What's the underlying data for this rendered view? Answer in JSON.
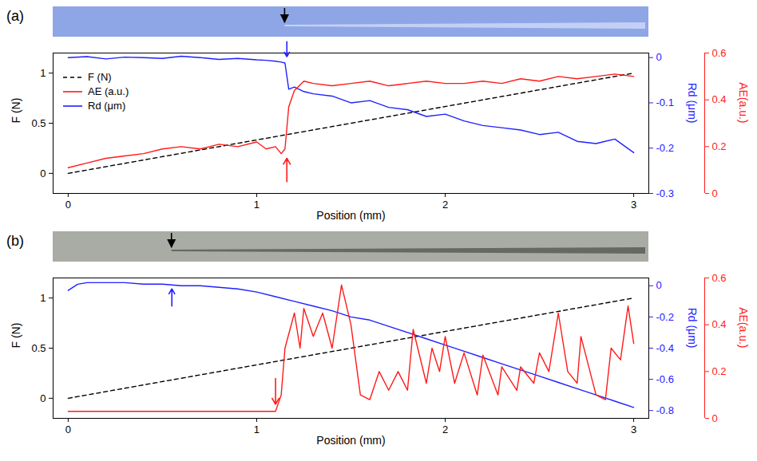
{
  "chart_data": [
    {
      "type": "line",
      "title": "(a)",
      "x_label": "Position (mm)",
      "y_label": "F (N)",
      "y2_label": "Rd (μm)",
      "y3_label": "AE(a.u.)",
      "xlim": [
        -0.08,
        3.08
      ],
      "xticks": [
        0,
        1,
        2,
        3
      ],
      "ylim": [
        -0.2,
        1.2
      ],
      "yticks": [
        0,
        0.5,
        1
      ],
      "y2lim": [
        -0.3,
        0.01
      ],
      "y2ticks": [
        0,
        -0.1,
        -0.2,
        -0.3
      ],
      "y3lim": [
        0,
        0.6
      ],
      "y3ticks": [
        0,
        0.2,
        0.4,
        0.6
      ],
      "legend": "upper left",
      "series": [
        {
          "name": "F (N)",
          "color": "#000000",
          "line_style": "dashed",
          "axis": "y",
          "x": [
            0,
            3
          ],
          "values": [
            0,
            1
          ]
        },
        {
          "name": "AE (a.u.)",
          "color": "#ff1a1a",
          "line_style": "solid",
          "axis": "y3",
          "x": [
            0,
            0.1,
            0.2,
            0.3,
            0.4,
            0.5,
            0.6,
            0.7,
            0.8,
            0.9,
            1.0,
            1.05,
            1.1,
            1.13,
            1.15,
            1.17,
            1.2,
            1.25,
            1.3,
            1.4,
            1.5,
            1.6,
            1.7,
            1.8,
            1.9,
            2.0,
            2.1,
            2.2,
            2.3,
            2.4,
            2.5,
            2.6,
            2.7,
            2.8,
            2.9,
            3.0
          ],
          "values": [
            0.11,
            0.13,
            0.15,
            0.16,
            0.17,
            0.19,
            0.2,
            0.19,
            0.21,
            0.2,
            0.22,
            0.19,
            0.2,
            0.17,
            0.19,
            0.37,
            0.44,
            0.48,
            0.47,
            0.46,
            0.47,
            0.48,
            0.46,
            0.47,
            0.48,
            0.47,
            0.47,
            0.48,
            0.47,
            0.49,
            0.48,
            0.5,
            0.49,
            0.5,
            0.51,
            0.5
          ]
        },
        {
          "name": "Rd (μm)",
          "color": "#2020ff",
          "line_style": "solid",
          "axis": "y2",
          "x": [
            0,
            0.1,
            0.2,
            0.3,
            0.4,
            0.5,
            0.6,
            0.7,
            0.8,
            0.9,
            1.0,
            1.05,
            1.1,
            1.13,
            1.15,
            1.17,
            1.2,
            1.25,
            1.3,
            1.4,
            1.5,
            1.6,
            1.7,
            1.8,
            1.9,
            2.0,
            2.1,
            2.2,
            2.3,
            2.4,
            2.5,
            2.6,
            2.7,
            2.8,
            2.9,
            3.0
          ],
          "values": [
            0.0,
            0.002,
            -0.003,
            0.001,
            0.0,
            -0.002,
            0.003,
            0.0,
            -0.004,
            -0.002,
            -0.005,
            -0.006,
            -0.008,
            -0.01,
            -0.012,
            -0.07,
            -0.065,
            -0.075,
            -0.08,
            -0.085,
            -0.1,
            -0.095,
            -0.11,
            -0.115,
            -0.13,
            -0.125,
            -0.14,
            -0.15,
            -0.155,
            -0.16,
            -0.17,
            -0.165,
            -0.185,
            -0.19,
            -0.18,
            -0.21
          ]
        }
      ],
      "annotations": [
        {
          "x": 1.15,
          "axis": "image",
          "color": "#000000"
        },
        {
          "x": 1.16,
          "from": 0.035,
          "to": 0.002,
          "axis": "y2",
          "color": "#2020ff"
        },
        {
          "x": 1.16,
          "from": 0.05,
          "to": 0.15,
          "axis": "y3",
          "color": "#ff1a1a"
        }
      ]
    },
    {
      "type": "line",
      "title": "(b)",
      "x_label": "Position (mm)",
      "y_label": "F (N)",
      "y2_label": "Rd (μm)",
      "y3_label": "AE(a.u.)",
      "xlim": [
        -0.08,
        3.08
      ],
      "xticks": [
        0,
        1,
        2,
        3
      ],
      "ylim": [
        -0.2,
        1.2
      ],
      "yticks": [
        0,
        0.5,
        1
      ],
      "y2lim": [
        -0.85,
        0.05
      ],
      "y2ticks": [
        0,
        -0.2,
        -0.4,
        -0.6,
        -0.8
      ],
      "y3lim": [
        0,
        0.6
      ],
      "y3ticks": [
        0,
        0.2,
        0.4,
        0.6
      ],
      "series": [
        {
          "name": "F (N)",
          "color": "#000000",
          "line_style": "dashed",
          "axis": "y",
          "x": [
            0,
            3
          ],
          "values": [
            0,
            1
          ]
        },
        {
          "name": "AE (a.u.)",
          "color": "#ff1a1a",
          "line_style": "solid",
          "axis": "y3",
          "x": [
            0,
            1.1,
            1.13,
            1.15,
            1.2,
            1.23,
            1.25,
            1.3,
            1.35,
            1.4,
            1.45,
            1.5,
            1.55,
            1.6,
            1.65,
            1.7,
            1.75,
            1.8,
            1.83,
            1.9,
            1.93,
            1.97,
            2.0,
            2.05,
            2.1,
            2.17,
            2.2,
            2.28,
            2.3,
            2.38,
            2.4,
            2.47,
            2.5,
            2.55,
            2.6,
            2.65,
            2.7,
            2.72,
            2.8,
            2.85,
            2.88,
            2.93,
            2.97,
            3.0
          ],
          "values": [
            0.03,
            0.03,
            0.1,
            0.3,
            0.45,
            0.3,
            0.47,
            0.35,
            0.45,
            0.3,
            0.57,
            0.4,
            0.1,
            0.08,
            0.2,
            0.12,
            0.2,
            0.12,
            0.38,
            0.15,
            0.3,
            0.2,
            0.35,
            0.15,
            0.28,
            0.1,
            0.27,
            0.1,
            0.22,
            0.12,
            0.22,
            0.15,
            0.28,
            0.2,
            0.45,
            0.2,
            0.15,
            0.35,
            0.1,
            0.08,
            0.3,
            0.25,
            0.48,
            0.32
          ]
        },
        {
          "name": "Rd (μm)",
          "color": "#2020ff",
          "line_style": "solid",
          "axis": "y2",
          "x": [
            0,
            0.05,
            0.1,
            0.2,
            0.3,
            0.4,
            0.5,
            0.6,
            0.7,
            0.8,
            0.9,
            1.0,
            1.1,
            1.2,
            1.3,
            1.4,
            1.5,
            1.6,
            1.7,
            1.8,
            1.9,
            2.0,
            2.1,
            2.2,
            2.3,
            2.4,
            2.5,
            2.6,
            2.7,
            2.8,
            2.9,
            3.0
          ],
          "values": [
            -0.03,
            0.01,
            0.02,
            0.02,
            0.02,
            0.01,
            0.01,
            0.0,
            0.0,
            -0.01,
            -0.02,
            -0.04,
            -0.07,
            -0.1,
            -0.13,
            -0.16,
            -0.2,
            -0.22,
            -0.26,
            -0.3,
            -0.34,
            -0.38,
            -0.42,
            -0.46,
            -0.5,
            -0.54,
            -0.58,
            -0.62,
            -0.66,
            -0.7,
            -0.74,
            -0.78
          ]
        }
      ],
      "annotations": [
        {
          "x": 0.55,
          "axis": "image",
          "color": "#000000"
        },
        {
          "x": 0.55,
          "from": -0.13,
          "to": -0.02,
          "axis": "y2",
          "color": "#2020ff"
        },
        {
          "x": 1.1,
          "from": 0.17,
          "to": 0.06,
          "axis": "y3",
          "color": "#ff1a1a"
        }
      ]
    }
  ]
}
